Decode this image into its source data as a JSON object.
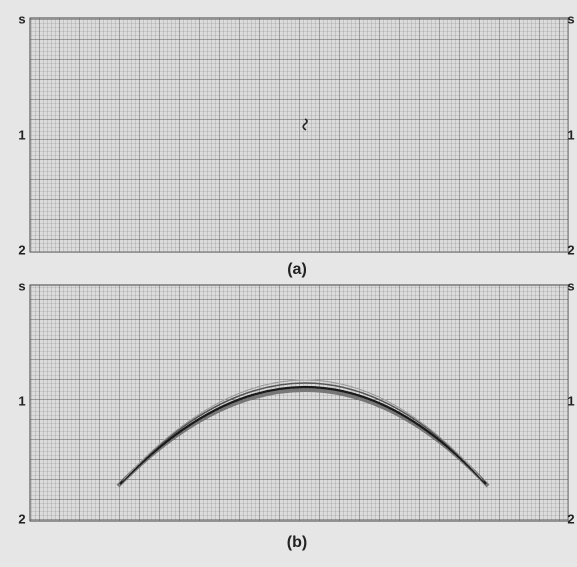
{
  "panels": [
    {
      "caption": "(a)",
      "left_axis": [
        "s",
        "1",
        "2"
      ],
      "right_axis": [
        "s",
        "1",
        "2"
      ]
    },
    {
      "caption": "(b)",
      "left_axis": [
        "s",
        "1",
        "2"
      ],
      "right_axis": [
        "s",
        "1",
        "2"
      ]
    }
  ]
}
